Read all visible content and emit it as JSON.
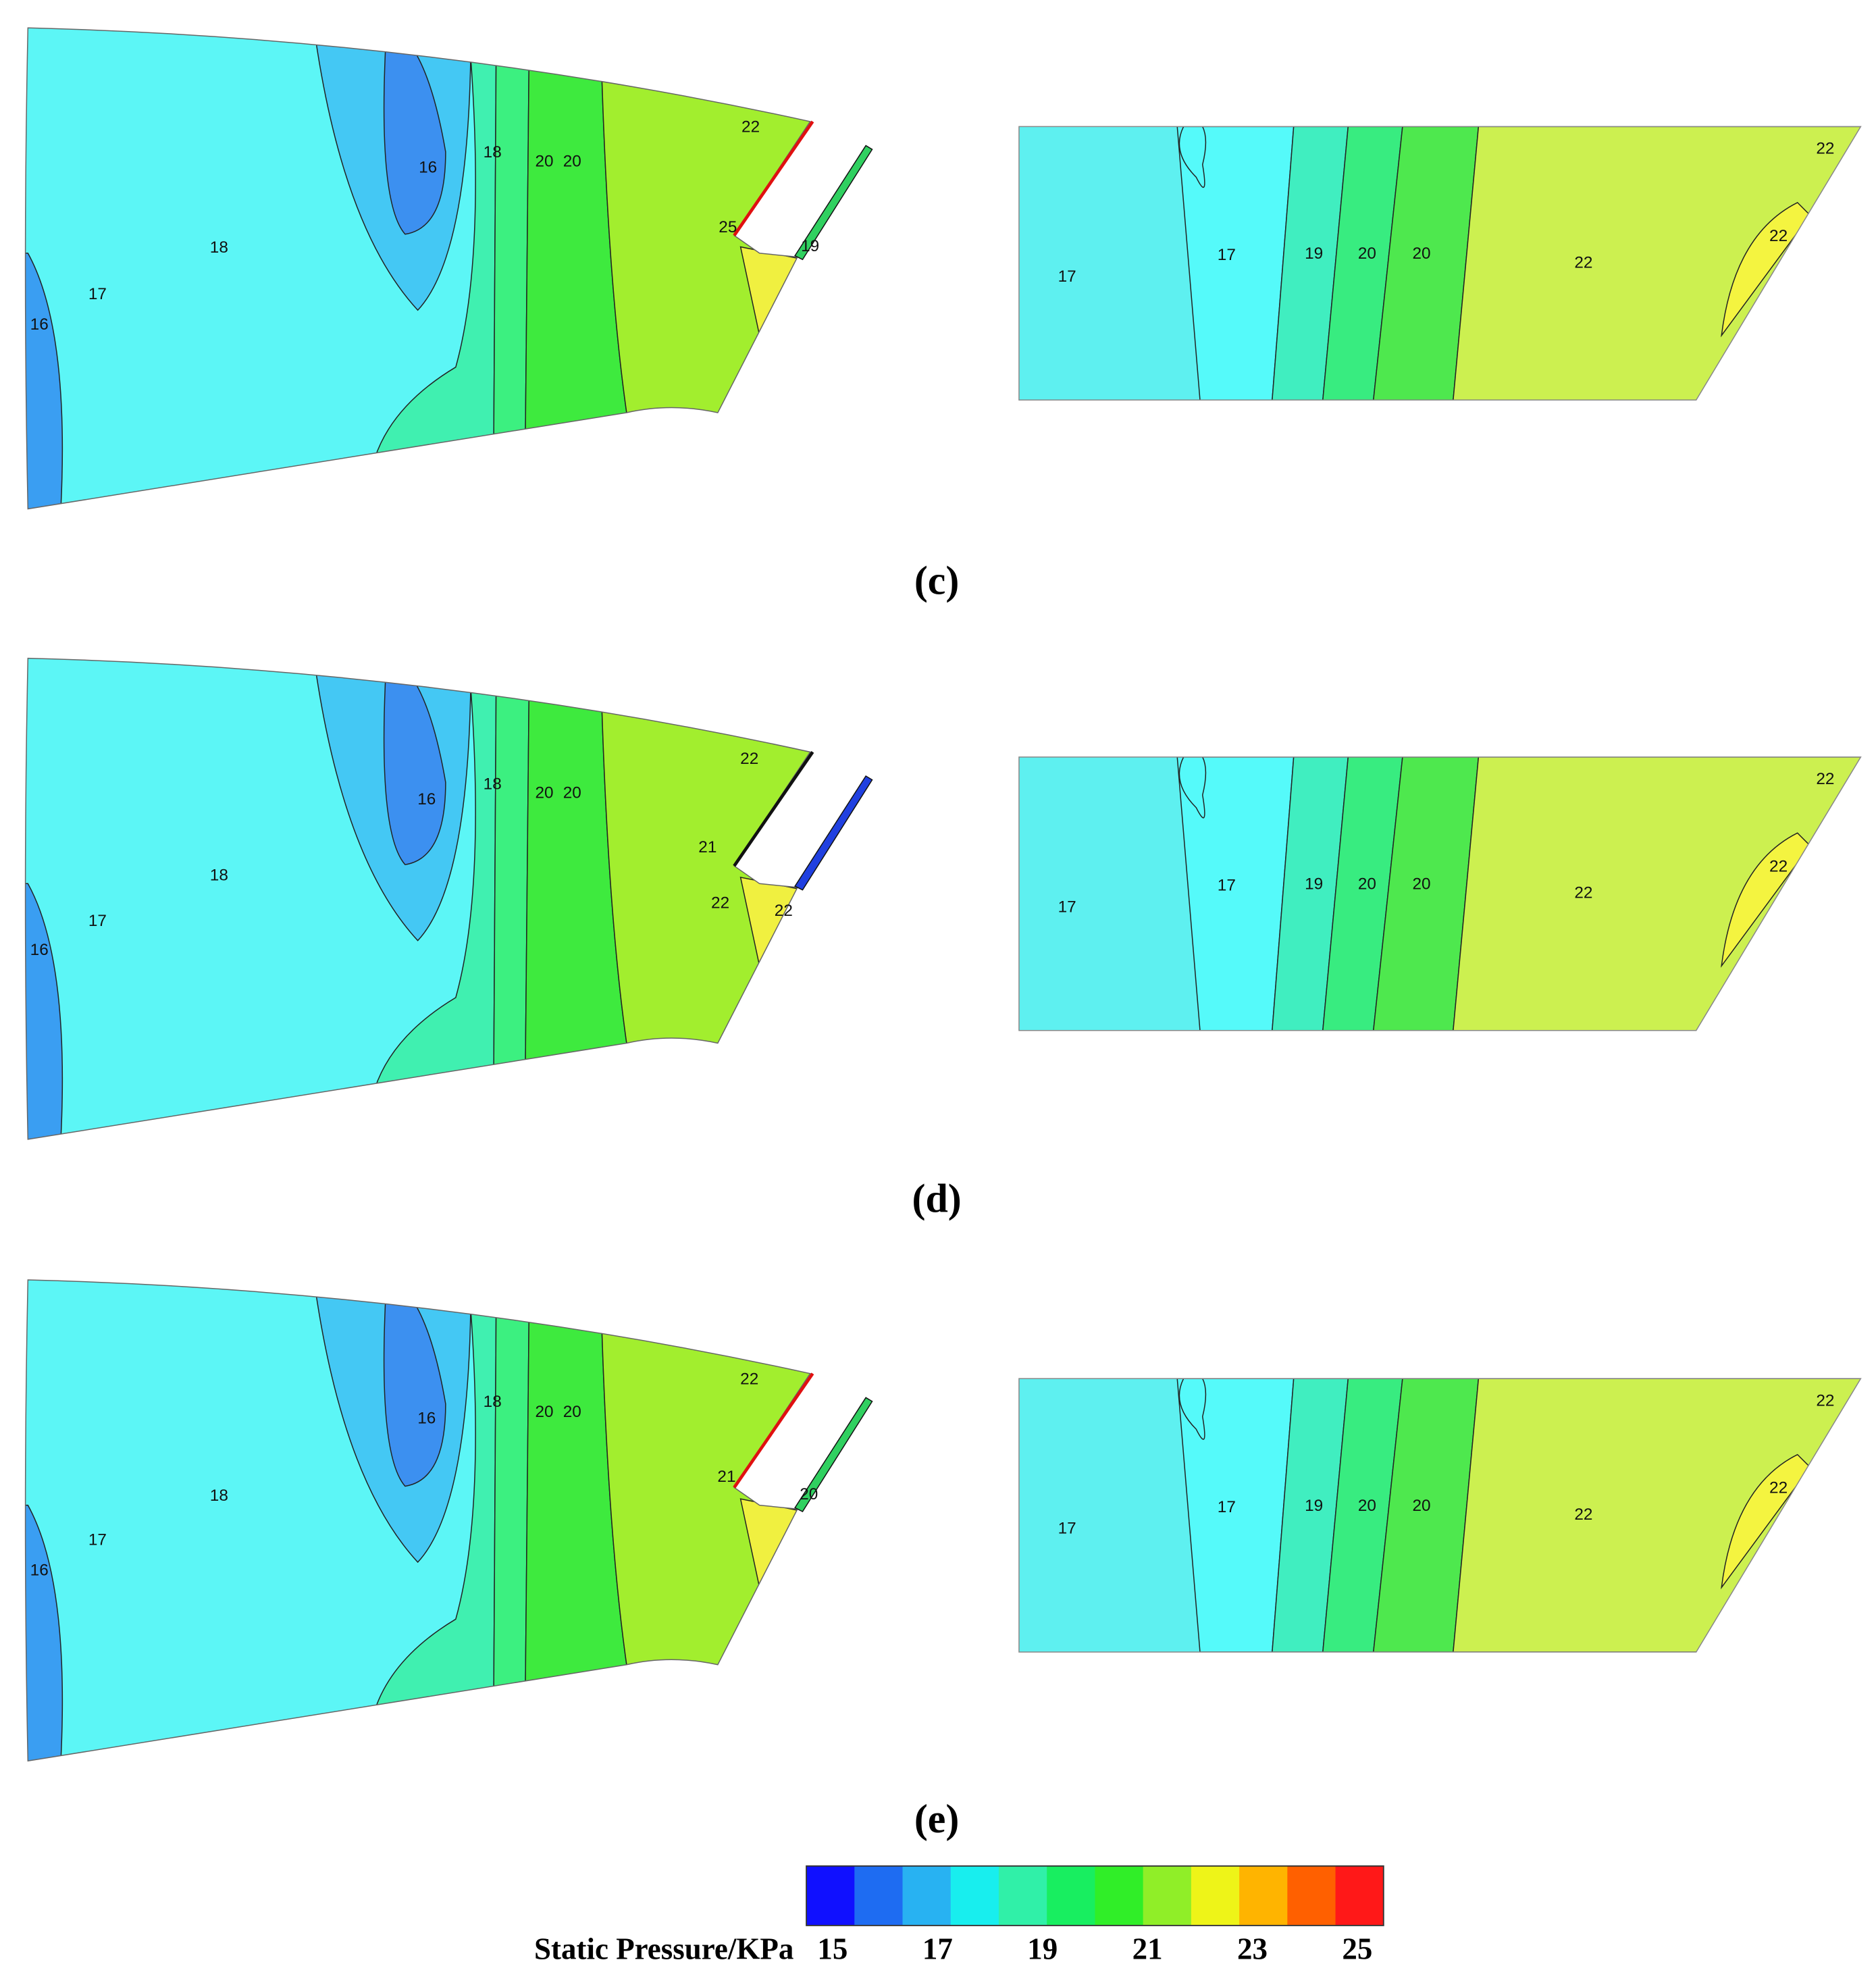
{
  "chart_data": {
    "type": "contour",
    "panels": [
      {
        "caption": "(c)",
        "left_labels": [
          22,
          16,
          18,
          20,
          20,
          25,
          19,
          18,
          17,
          16
        ],
        "right_labels": [
          22,
          22,
          17,
          17,
          19,
          20,
          20,
          22
        ]
      },
      {
        "caption": "(d)",
        "left_labels": [
          22,
          16,
          18,
          20,
          20,
          21,
          22,
          22,
          18,
          17,
          16
        ],
        "right_labels": [
          22,
          22,
          17,
          17,
          19,
          20,
          20,
          22
        ]
      },
      {
        "caption": "(e)",
        "left_labels": [
          22,
          16,
          18,
          20,
          20,
          21,
          20,
          18,
          17,
          16
        ],
        "right_labels": [
          22,
          22,
          17,
          17,
          19,
          20,
          20,
          22
        ]
      }
    ],
    "colorbar": {
      "title": "Static Pressure/KPa",
      "lim": [
        14.5,
        25.5
      ],
      "ticks": [
        15,
        17,
        19,
        21,
        23,
        25
      ],
      "colors": [
        "#1010ff",
        "#1e6cf2",
        "#28b2f2",
        "#18eeee",
        "#30f0a8",
        "#18ee60",
        "#30ee28",
        "#90ee28",
        "#eef418",
        "#ffb400",
        "#ff6000",
        "#ff1818"
      ]
    }
  }
}
